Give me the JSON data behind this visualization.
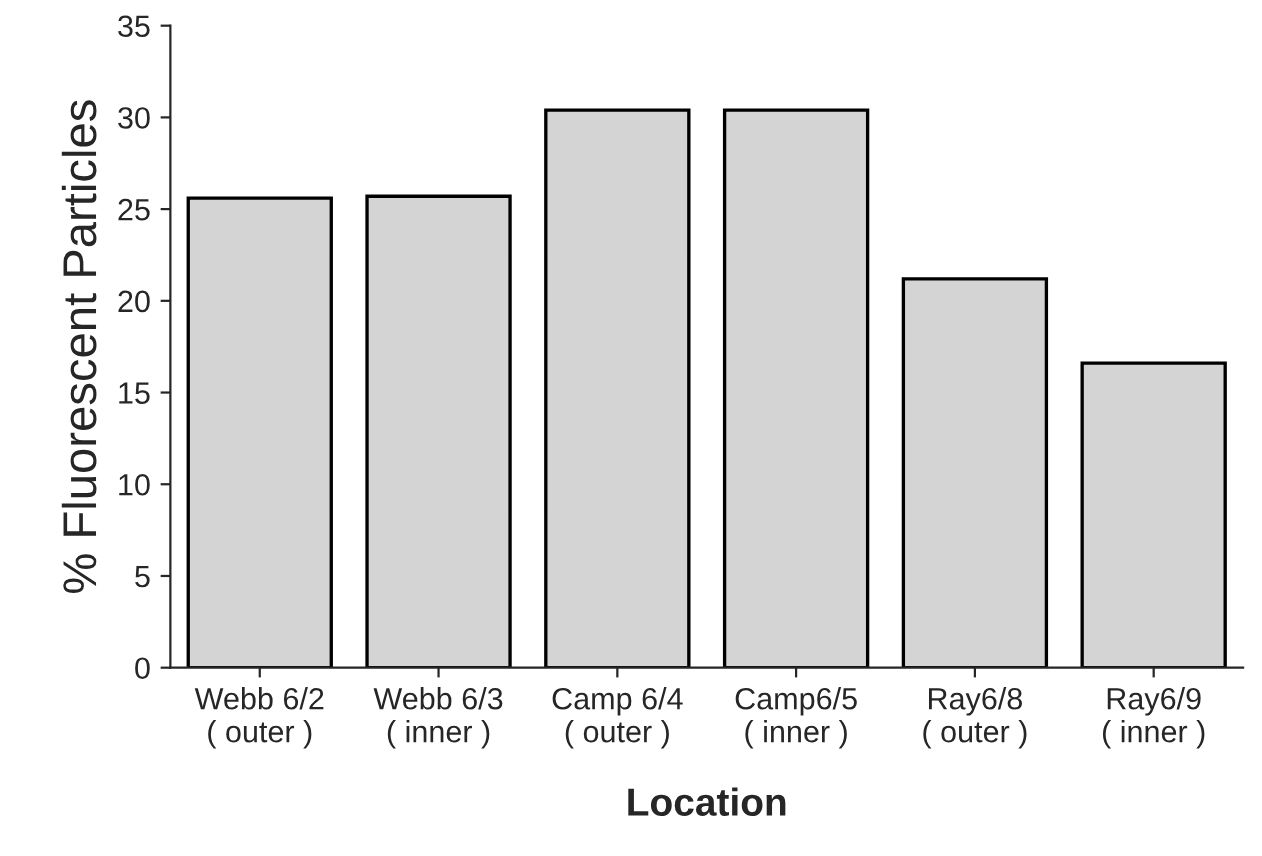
{
  "chart_data": {
    "type": "bar",
    "xlabel": "Location",
    "ylabel": "% Fluorescent Particles",
    "categories": [
      "Webb 6/2\n( outer )",
      "Webb 6/3\n( inner )",
      "Camp 6/4\n( outer )",
      "Camp6/5\n( inner )",
      "Ray6/8\n( outer )",
      "Ray6/9\n( inner )"
    ],
    "values": [
      25.6,
      25.7,
      30.4,
      30.4,
      21.2,
      16.6
    ],
    "color": "#d4d4d4",
    "ylim": [
      0,
      35
    ],
    "yticks": [
      0,
      5,
      10,
      15,
      20,
      25,
      30,
      35
    ],
    "grid": false,
    "legend": false
  }
}
